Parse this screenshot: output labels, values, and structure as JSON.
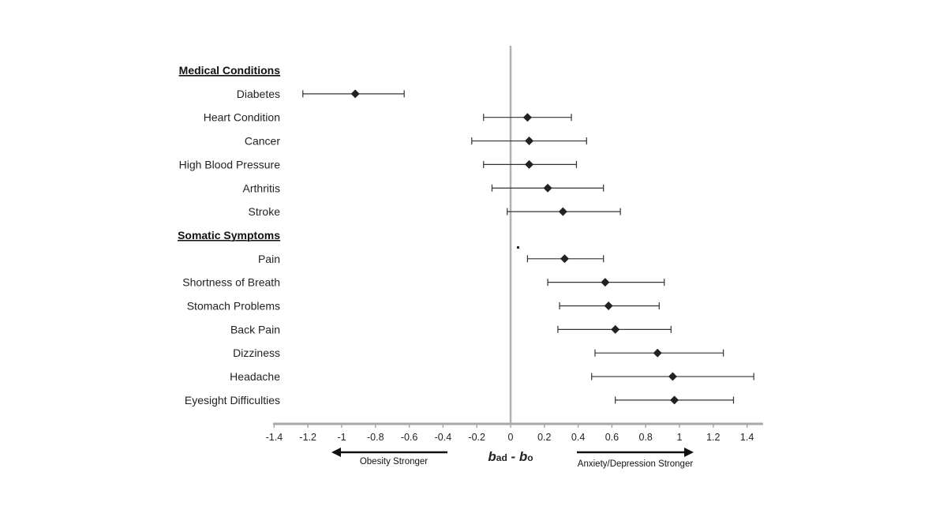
{
  "chart_data": {
    "type": "forest",
    "xlabel_main": "b",
    "xlabel_sub1": "ad",
    "xlabel_mid": " - ",
    "xlabel_main2": "b",
    "xlabel_sub2": "o",
    "xlim": [
      -1.4,
      1.5
    ],
    "xticks": [
      "-1.4",
      "-1.2",
      "-1",
      "-0.8",
      "-0.6",
      "-0.4",
      "-0.2",
      "0",
      "0.2",
      "0.4",
      "0.6",
      "0.8",
      "1",
      "1.2",
      "1.4"
    ],
    "xtick_values": [
      -1.4,
      -1.2,
      -1.0,
      -0.8,
      -0.6,
      -0.4,
      -0.2,
      0,
      0.2,
      0.4,
      0.6,
      0.8,
      1.0,
      1.2,
      1.4
    ],
    "left_arrow_label": "Obesity Stronger",
    "right_arrow_label": "Anxiety/Depression Stronger",
    "groups": [
      {
        "title": "Medical Conditions",
        "rows": [
          {
            "label": "Diabetes",
            "estimate": -0.92,
            "lower": -1.23,
            "upper": -0.63
          },
          {
            "label": "Heart Condition",
            "estimate": 0.1,
            "lower": -0.16,
            "upper": 0.36
          },
          {
            "label": "Cancer",
            "estimate": 0.11,
            "lower": -0.23,
            "upper": 0.45
          },
          {
            "label": "High Blood Pressure",
            "estimate": 0.11,
            "lower": -0.16,
            "upper": 0.39
          },
          {
            "label": "Arthritis",
            "estimate": 0.22,
            "lower": -0.11,
            "upper": 0.55
          },
          {
            "label": "Stroke",
            "estimate": 0.31,
            "lower": -0.02,
            "upper": 0.65
          }
        ]
      },
      {
        "title": "Somatic Symptoms",
        "rows": [
          {
            "label": "Pain",
            "estimate": 0.32,
            "lower": 0.1,
            "upper": 0.55
          },
          {
            "label": "Shortness of Breath",
            "estimate": 0.56,
            "lower": 0.22,
            "upper": 0.91
          },
          {
            "label": "Stomach Problems",
            "estimate": 0.58,
            "lower": 0.29,
            "upper": 0.88
          },
          {
            "label": "Back Pain",
            "estimate": 0.62,
            "lower": 0.28,
            "upper": 0.95
          },
          {
            "label": "Dizziness",
            "estimate": 0.87,
            "lower": 0.5,
            "upper": 1.26
          },
          {
            "label": "Headache",
            "estimate": 0.96,
            "lower": 0.48,
            "upper": 1.44
          },
          {
            "label": "Eyesight Difficulties",
            "estimate": 0.97,
            "lower": 0.62,
            "upper": 1.32
          }
        ]
      }
    ]
  }
}
